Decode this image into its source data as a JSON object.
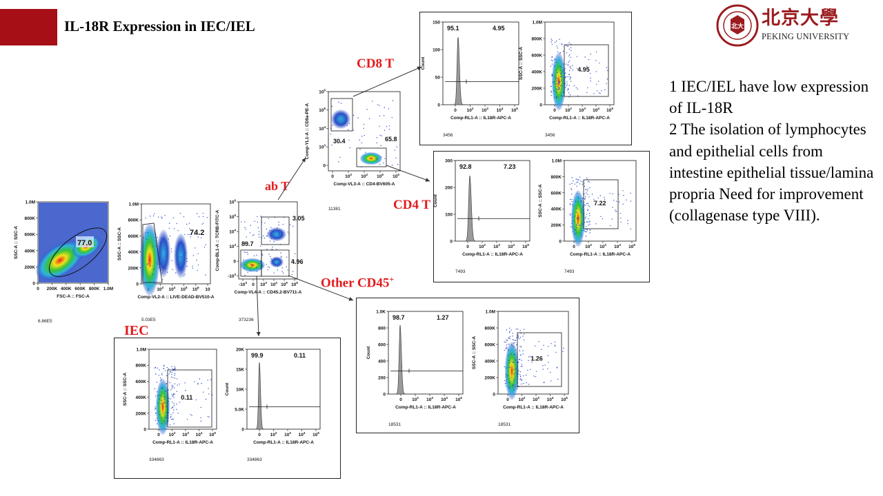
{
  "title": "IL-18R Expression in IEC/IEL",
  "logo": {
    "chinese": "北京大學",
    "english": "PEKING UNIVERSITY",
    "seal_text": "PEKING UNIVERSITY 1898"
  },
  "notes": [
    "1 IEC/IEL have low expression of IL-18R",
    "2 The isolation of lymphocytes and epithelial cells from intestine epithelial tissue/lamina propria Need for improvement (collagenase type VIII)."
  ],
  "population_labels": {
    "cd8": "CD8 T",
    "cd4": "CD4 T",
    "abt": "ab T",
    "other": "Other CD45",
    "other_sup": "+",
    "iec": "IEC"
  },
  "colors": {
    "accent_red": "#a50f15",
    "label_red": "#e31a1c",
    "density_low": "#2b4dc7",
    "density_high": "#e8261c",
    "histogram": "#9a9a9a"
  },
  "plots": {
    "fsc": {
      "ylabel": "SSC-A :: SSC-A",
      "xlabel": "FSC-A :: FSC-A",
      "yticks": [
        "1.0M",
        "800K",
        "600K",
        "400K",
        "200K",
        "0"
      ],
      "xticks": [
        "0",
        "200K",
        "400K",
        "600K",
        "800K",
        "1.0M"
      ],
      "gate": "77.0",
      "count": "6.86E5"
    },
    "livedead": {
      "ylabel": "SSC-A :: SSC-A",
      "xlabel": "Comp-VL2-A :: LIVE-DEAD-BV510-A",
      "yticks": [
        "1.0M",
        "800K",
        "600K",
        "400K",
        "200K",
        "0"
      ],
      "xticks": [
        "0",
        "10",
        "10",
        "10",
        "10",
        "10"
      ],
      "xexp": [
        "",
        "3",
        "4",
        "5",
        "6",
        ""
      ],
      "gate": "74.2",
      "count": "5.03E5"
    },
    "tcrb": {
      "ylabel": "Comp-BL1-A :: TCRB-FITC-A",
      "xlabel": "Comp-VL4-A :: CD45.2-BV711-A",
      "yticks": [
        "10",
        "10",
        "10",
        "10",
        "0",
        "-10"
      ],
      "yexp": [
        "6",
        "5",
        "4",
        "3",
        "",
        "3"
      ],
      "xticks": [
        "-10",
        "0",
        "10",
        "10",
        "10",
        "10"
      ],
      "xexp": [
        "3",
        "",
        "3",
        "4",
        "5",
        "6"
      ],
      "gates": [
        "3.05",
        "89.7",
        "4.96"
      ],
      "count": "373236"
    },
    "cd8cd4": {
      "ylabel": "Comp-YL1-A :: CD8a-PE-A",
      "xlabel": "Comp-VL3-A :: CD4-BV605-A",
      "yticks": [
        "10",
        "10",
        "10",
        "10",
        "0"
      ],
      "yexp": [
        "6",
        "5",
        "4",
        "3",
        ""
      ],
      "xticks": [
        "0",
        "10",
        "10",
        "10",
        "10"
      ],
      "xexp": [
        "",
        "3",
        "4",
        "5",
        "6"
      ],
      "gates": [
        "30.4",
        "65.8"
      ],
      "count": "11381"
    },
    "cd8_hist": {
      "ylabel": "Count",
      "xlabel": "Comp-RL1-A :: IL18R-APC-A",
      "yticks": [
        "150",
        "100",
        "50",
        "0"
      ],
      "xticks": [
        "0",
        "10",
        "10",
        "10",
        "10"
      ],
      "xexp": [
        "",
        "2",
        "3",
        "4",
        "5"
      ],
      "gates": [
        "95.1",
        "4.95"
      ],
      "count": "3456"
    },
    "cd8_dot": {
      "ylabel": "SSC-A :: SSC-A",
      "xlabel": "Comp-RL1-A :: IL18R-APC-A",
      "yticks": [
        "1.0M",
        "800K",
        "600K",
        "400K",
        "200K",
        "0"
      ],
      "xticks": [
        "0",
        "10",
        "10",
        "10",
        "10"
      ],
      "xexp": [
        "",
        "2",
        "3",
        "4",
        "5"
      ],
      "gate": "4.95",
      "count": "3456"
    },
    "cd4_hist": {
      "ylabel": "Count",
      "xlabel": "Comp-RL1-A :: IL18R-APC-A",
      "yticks": [
        "300",
        "200",
        "100",
        "0"
      ],
      "xticks": [
        "0",
        "10",
        "10",
        "10",
        "10"
      ],
      "xexp": [
        "",
        "2",
        "3",
        "4",
        "5"
      ],
      "gates": [
        "92.8",
        "7.23"
      ],
      "count": "7493"
    },
    "cd4_dot": {
      "ylabel": "SSC-A :: SSC-A",
      "xlabel": "Comp-RL1-A :: IL18R-APC-A",
      "yticks": [
        "1.0M",
        "800K",
        "600K",
        "400K",
        "200K",
        "0"
      ],
      "xticks": [
        "0",
        "10",
        "10",
        "10",
        "10"
      ],
      "xexp": [
        "",
        "2",
        "3",
        "4",
        "5"
      ],
      "gate": "7.22",
      "count": "7493"
    },
    "other_hist": {
      "ylabel": "Count",
      "xlabel": "Comp-RL1-A :: IL18R-APC-A",
      "yticks": [
        "1.0K",
        "800",
        "600",
        "400",
        "200",
        "0"
      ],
      "xticks": [
        "0",
        "10",
        "10",
        "10",
        "10"
      ],
      "xexp": [
        "",
        "2",
        "3",
        "4",
        "5"
      ],
      "gates": [
        "98.7",
        "1.27"
      ],
      "count": "18531"
    },
    "other_dot": {
      "ylabel": "SSC-A :: SSC-A",
      "xlabel": "Comp-RL1-A :: IL18R-APC-A",
      "yticks": [
        "1.0M",
        "800K",
        "600K",
        "400K",
        "200K",
        "0"
      ],
      "xticks": [
        "0",
        "10",
        "10",
        "10",
        "10"
      ],
      "xexp": [
        "",
        "2",
        "3",
        "4",
        "5"
      ],
      "gate": "1.26",
      "count": "18531"
    },
    "iec_dot": {
      "ylabel": "SSC-A :: SSC-A",
      "xlabel": "Comp-RL1-A :: IL18R-APC-A",
      "yticks": [
        "1.0M",
        "800K",
        "600K",
        "400K",
        "200K",
        "0"
      ],
      "xticks": [
        "0",
        "10",
        "10",
        "10",
        "10"
      ],
      "xexp": [
        "",
        "2",
        "3",
        "4",
        "5"
      ],
      "gate": "0.11",
      "count": "334863"
    },
    "iec_hist": {
      "ylabel": "Count",
      "xlabel": "Comp-RL1-A :: IL18R-APC-A",
      "yticks": [
        "20K",
        "15K",
        "10K",
        "5.0K",
        "0"
      ],
      "xticks": [
        "0",
        "10",
        "10",
        "10",
        "10"
      ],
      "xexp": [
        "",
        "2",
        "3",
        "4",
        "5"
      ],
      "gates": [
        "99.9",
        "0.11"
      ],
      "count": "334863"
    }
  }
}
